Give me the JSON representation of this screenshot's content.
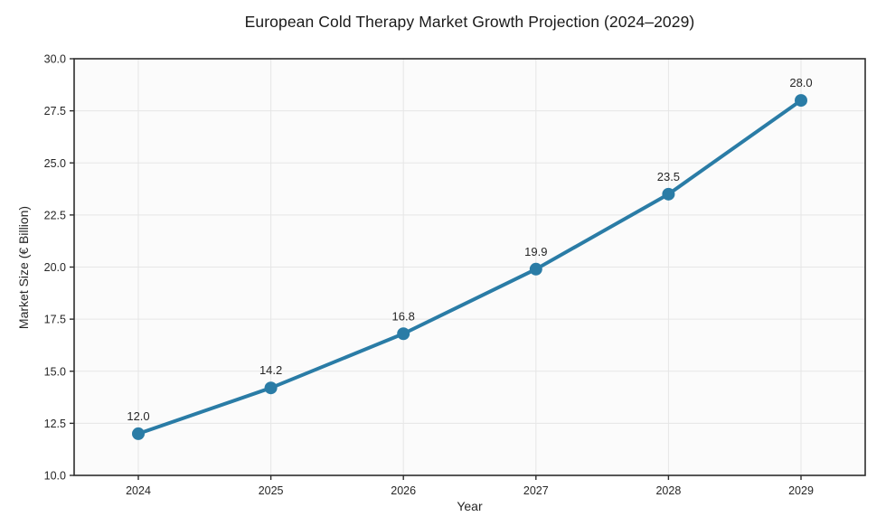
{
  "chart_data": {
    "type": "line",
    "title": "European Cold Therapy Market Growth Projection (2024–2029)",
    "xlabel": "Year",
    "ylabel": "Market Size (€ Billion)",
    "x": [
      2024,
      2025,
      2026,
      2027,
      2028,
      2029
    ],
    "series": [
      {
        "name": "Market Size",
        "values": [
          12.0,
          14.2,
          16.8,
          19.9,
          23.5,
          28.0
        ]
      }
    ],
    "data_labels": [
      "12.0",
      "14.2",
      "16.8",
      "19.9",
      "23.5",
      "28.0"
    ],
    "ylim": [
      10.0,
      30.0
    ],
    "yticks": [
      10.0,
      12.5,
      15.0,
      17.5,
      20.0,
      22.5,
      25.0,
      27.5,
      30.0
    ],
    "ytick_labels": [
      "10.0",
      "12.5",
      "15.0",
      "17.5",
      "20.0",
      "22.5",
      "25.0",
      "27.5",
      "30.0"
    ],
    "xtick_labels": [
      "2024",
      "2025",
      "2026",
      "2027",
      "2028",
      "2029"
    ],
    "grid": true,
    "legend": "none",
    "colors": {
      "line": "#2a7ca6",
      "marker": "#2a7ca6",
      "grid": "#e6e6e6",
      "spine": "#2d2d2d",
      "text": "#262626",
      "title": "#1a1a1a",
      "plot_bg": "#fbfbfb",
      "figure_bg": "#ffffff"
    }
  }
}
